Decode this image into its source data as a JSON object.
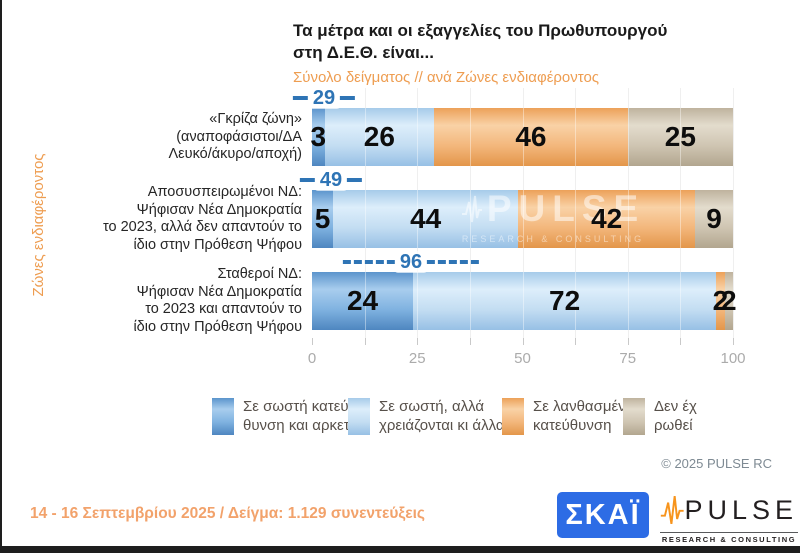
{
  "header": {
    "title_line1": "Τα μέτρα και οι εξαγγελίες του Πρωθυπουργού",
    "title_line2": "στη Δ.Ε.Θ. είναι...",
    "subtitle": "Σύνολο δείγματος // ανά Ζώνες ενδιαφέροντος"
  },
  "y_axis_label": "Ζώνες ενδιαφέροντος",
  "chart_data": {
    "type": "bar",
    "orientation": "horizontal",
    "stacked": true,
    "xlim": [
      0,
      100
    ],
    "x_ticks": [
      0,
      25,
      50,
      75,
      100
    ],
    "minor_grid_step": 12.5,
    "grid": true,
    "categories": [
      {
        "lines": [
          "«Γκρίζα ζώνη»",
          "(αναποφάσιστοι/ΔΑ",
          "Λευκό/άκυρο/αποχή)"
        ]
      },
      {
        "lines": [
          "Αποσυσπειρωμένοι ΝΔ:",
          "Ψήφισαν Νέα Δημοκρατία",
          "το 2023, αλλά δεν απαντούν το",
          "ίδιο στην Πρόθεση Ψήφου"
        ]
      },
      {
        "lines": [
          "Σταθεροί ΝΔ:",
          "Ψήφισαν Νέα Δημοκρατία",
          "το 2023 και απαντούν το",
          "ίδιο στην Πρόθεση Ψήφου"
        ]
      }
    ],
    "series": [
      {
        "name": "Σε σωστή κατεύθυνση και αρκετά",
        "color": "#5B9BD5",
        "values": [
          3,
          5,
          24
        ]
      },
      {
        "name": "Σε σωστή, αλλά χρειάζονται κι άλλα",
        "color": "#BDD7EE",
        "values": [
          26,
          44,
          72
        ]
      },
      {
        "name": "Σε λανθασμένη κατεύθυνση",
        "color": "#F4B183",
        "values": [
          46,
          42,
          2
        ]
      },
      {
        "name": "Δεν έχ ρωθεί",
        "color": "#CCC0AC",
        "values": [
          25,
          9,
          2
        ]
      }
    ],
    "sum_markers": {
      "values": [
        29,
        49,
        96
      ],
      "color": "#2E74B5"
    }
  },
  "legend": {
    "items": [
      {
        "label_lines": [
          "Σε σωστή κατεύ-",
          "θυνση και αρκετά"
        ]
      },
      {
        "label_lines": [
          "Σε σωστή, αλλά",
          "χρειάζονται κι άλλα"
        ]
      },
      {
        "label_lines": [
          "Σε λανθασμένη",
          "κατεύθυνση"
        ]
      },
      {
        "label_lines": [
          "Δεν έχ",
          "ρωθεί"
        ]
      }
    ]
  },
  "watermark": {
    "text": "PULSE",
    "subtext": "RESEARCH & CONSULTING"
  },
  "copyright": "© 2025 PULSE RC",
  "footer": {
    "date_sample": "14 - 16 Σεπτεμβρίου 2025  /  Δείγμα:  1.129 συνεντεύξεις"
  },
  "logos": {
    "skai": "ΣΚΑΪ",
    "pulse_name": "PULSE",
    "pulse_tagline": "RESEARCH & CONSULTING"
  }
}
